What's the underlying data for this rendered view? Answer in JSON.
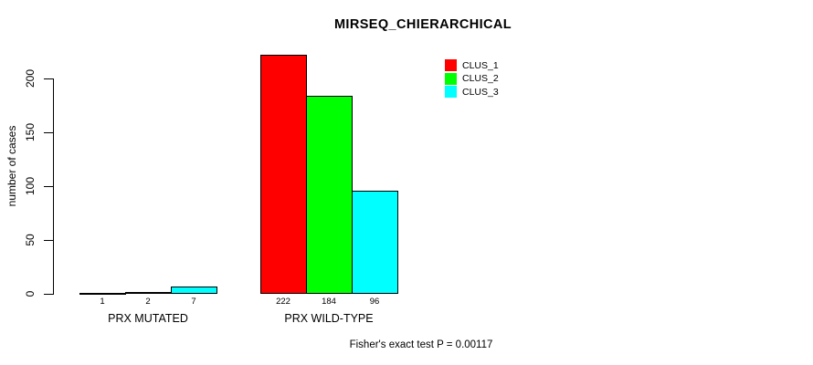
{
  "figure": {
    "title": "MIRSEQ_CHIERARCHICAL",
    "y_axis_label": "number of cases",
    "footnote": "Fisher's exact test P = 0.00117"
  },
  "chart_data": {
    "type": "bar",
    "title": "MIRSEQ_CHIERARCHICAL",
    "categories": [
      "PRX MUTATED",
      "PRX WILD-TYPE"
    ],
    "series": [
      {
        "name": "CLUS_1",
        "color": "#FF0000",
        "values": [
          1,
          222
        ]
      },
      {
        "name": "CLUS_2",
        "color": "#00FF00",
        "values": [
          2,
          184
        ]
      },
      {
        "name": "CLUS_3",
        "color": "#00FFFF",
        "values": [
          7,
          96
        ]
      }
    ],
    "bar_value_labels": [
      [
        1,
        2,
        7
      ],
      [
        222,
        184,
        96
      ]
    ],
    "xlabel": "",
    "ylabel": "number of cases",
    "ylim": [
      0,
      222
    ],
    "yticks": [
      0,
      50,
      100,
      150,
      200
    ],
    "grid": false,
    "legend_position": "top-right",
    "legend_entries": [
      "CLUS_1",
      "CLUS_2",
      "CLUS_3"
    ],
    "annotation": "Fisher's exact test P = 0.00117",
    "colors": {
      "background": "#FFFFFF",
      "axis": "#000000",
      "bar_border": "#000000",
      "text": "#000000"
    }
  }
}
